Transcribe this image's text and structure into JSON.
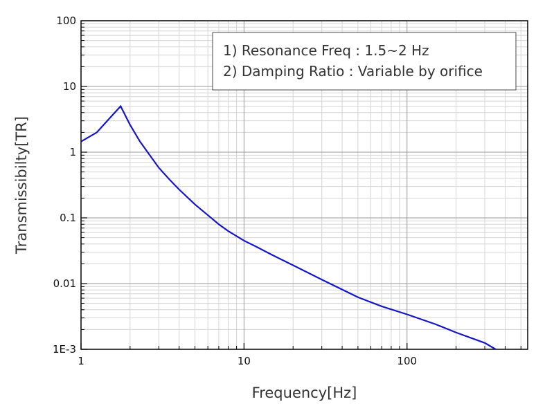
{
  "chart_data": {
    "type": "line",
    "title": "",
    "xlabel": "Frequency[Hz]",
    "ylabel": "Transmissibilty[TR]",
    "xscale": "log",
    "yscale": "log",
    "xlim": [
      1,
      550
    ],
    "ylim": [
      0.001,
      100
    ],
    "grid": true,
    "xticks": [
      {
        "value": 1,
        "label": "1"
      },
      {
        "value": 10,
        "label": "10"
      },
      {
        "value": 100,
        "label": "100"
      }
    ],
    "yticks": [
      {
        "value": 100,
        "label": "100"
      },
      {
        "value": 10,
        "label": "10"
      },
      {
        "value": 1,
        "label": "1"
      },
      {
        "value": 0.1,
        "label": "0.1"
      },
      {
        "value": 0.01,
        "label": "0.01"
      },
      {
        "value": 0.001,
        "label": "1E-3"
      }
    ],
    "annotation": {
      "position": "top-right",
      "lines": [
        "1) Resonance Freq : 1.5~2 Hz",
        "2) Damping Ratio : Variable by orifice"
      ]
    },
    "line_color": "#1515c8",
    "series": [
      {
        "x": [
          1,
          1.25,
          1.5,
          1.75,
          2,
          2.3,
          2.6,
          3,
          3.5,
          4,
          5,
          6,
          7,
          8,
          10,
          12,
          15,
          20,
          30,
          50,
          70,
          100,
          150,
          200,
          300,
          350
        ],
        "y": [
          1.45,
          2.0,
          3.3,
          5.0,
          2.6,
          1.45,
          0.95,
          0.58,
          0.38,
          0.27,
          0.16,
          0.11,
          0.08,
          0.063,
          0.045,
          0.036,
          0.027,
          0.019,
          0.0115,
          0.0062,
          0.0045,
          0.0034,
          0.0024,
          0.0018,
          0.00125,
          0.001
        ]
      }
    ]
  }
}
